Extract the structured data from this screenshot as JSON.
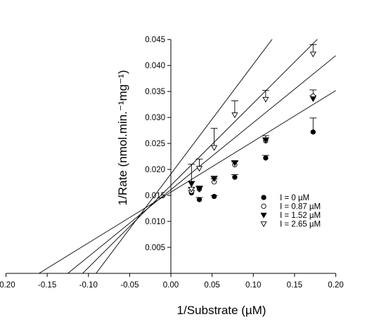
{
  "chart_data": {
    "type": "scatter",
    "xlabel": "1/Substrate (µM)",
    "ylabel": "1/Rate (nmol.min.⁻¹mg⁻¹)",
    "xlim": [
      -0.2,
      0.2
    ],
    "ylim": [
      0.0,
      0.045
    ],
    "x_ticks": [
      "-0.20",
      "-0.15",
      "-0.10",
      "-0.05",
      "0.00",
      "0.05",
      "0.10",
      "0.15",
      "0.20"
    ],
    "x_tick_values": [
      -0.2,
      -0.15,
      -0.1,
      -0.05,
      0.0,
      0.05,
      0.1,
      0.15,
      0.2
    ],
    "y_ticks": [
      "0.005",
      "0.010",
      "0.015",
      "0.020",
      "0.025",
      "0.030",
      "0.035",
      "0.040",
      "0.045"
    ],
    "y_tick_values": [
      0.005,
      0.01,
      0.015,
      0.02,
      0.025,
      0.03,
      0.035,
      0.04,
      0.045
    ],
    "grid": false,
    "legend_position": "right",
    "series": [
      {
        "name": "I = 0 µM",
        "marker": "filled-circle",
        "x": [
          0.025,
          0.0345,
          0.0525,
          0.0775,
          0.115,
          0.1725
        ],
        "y": [
          0.0155,
          0.0142,
          0.0148,
          0.0185,
          0.0222,
          0.0272
        ],
        "err": [
          0.0004,
          0.0004,
          0.0002,
          0.0005,
          0.0005,
          0.0027
        ],
        "fit_x_intercept": -0.16,
        "fit_slope": 0.0977,
        "fit_intercept": 0.01563
      },
      {
        "name": "I = 0.87 µM",
        "marker": "open-circle",
        "x": [
          0.025,
          0.0345,
          0.0525,
          0.0775,
          0.115,
          0.1725
        ],
        "y": [
          0.0158,
          0.0162,
          0.0176,
          0.0209,
          0.0255,
          0.0341
        ],
        "err": [
          0.0006,
          0.0006,
          0.0006,
          0.0006,
          0.001,
          0.0012
        ],
        "fit_x_intercept": -0.125,
        "fit_slope": 0.1289,
        "fit_intercept": 0.01611
      },
      {
        "name": "I = 1.52 µM",
        "marker": "filled-triangle-down",
        "x": [
          0.025,
          0.0345,
          0.0525,
          0.0775,
          0.115,
          0.1725
        ],
        "y": [
          0.0172,
          0.0162,
          0.0182,
          0.0212,
          0.0256,
          0.0336
        ],
        "err": [
          0.0005,
          0.0005,
          0.0005,
          0.0005,
          0.0005,
          0.0006
        ],
        "fit_x_intercept": -0.107,
        "fit_slope": 0.1582,
        "fit_intercept": 0.01693
      },
      {
        "name": "I = 2.65 µM",
        "marker": "open-triangle-down",
        "x": [
          0.025,
          0.0345,
          0.0525,
          0.0775,
          0.115,
          0.1725
        ],
        "y": [
          0.0162,
          0.0202,
          0.0242,
          0.0305,
          0.0335,
          0.0422
        ],
        "err": [
          0.0048,
          0.0018,
          0.0037,
          0.0027,
          0.0017,
          0.0018
        ],
        "fit_x_intercept": -0.091,
        "fit_slope": 0.2109,
        "fit_intercept": 0.01914
      }
    ]
  }
}
